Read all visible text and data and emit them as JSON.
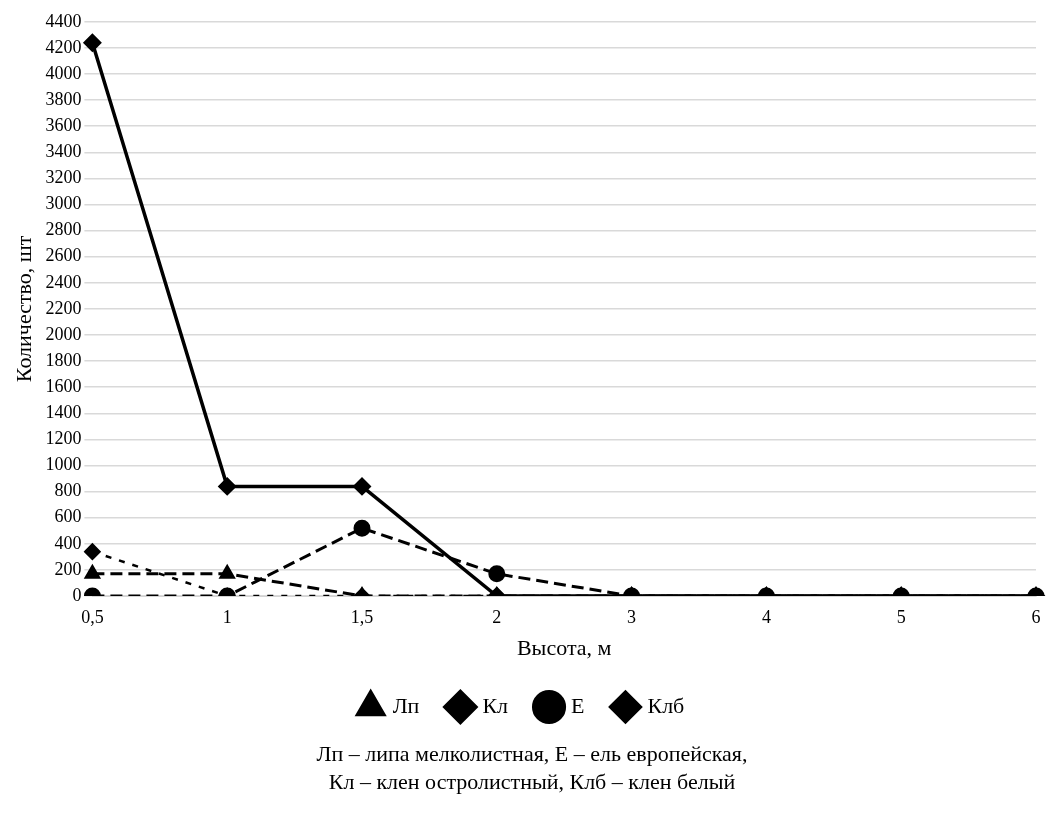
{
  "chart_data": {
    "type": "line",
    "xlabel": "Высота, м",
    "ylabel": "Количество, шт",
    "categories": [
      "0,5",
      "1",
      "1,5",
      "2",
      "3",
      "4",
      "5",
      "6"
    ],
    "series": [
      {
        "name": "Лп",
        "color": "#000000",
        "values": [
          170,
          170,
          0,
          0,
          0,
          0,
          0,
          0
        ],
        "marker": "triangle",
        "line_style": "dashed"
      },
      {
        "name": "Кл",
        "color": "#000000",
        "values": [
          4240,
          840,
          840,
          0,
          0,
          0,
          0,
          0
        ],
        "marker": "diamond",
        "line_style": "solid"
      },
      {
        "name": "Е",
        "color": "#000000",
        "values": [
          0,
          0,
          520,
          170,
          0,
          0,
          0,
          0
        ],
        "marker": "circle",
        "line_style": "dashed"
      },
      {
        "name": "Клб",
        "color": "#000000",
        "values": [
          340,
          0,
          0,
          0,
          0,
          0,
          0,
          0
        ],
        "marker": "diamond",
        "line_style": "dotted"
      }
    ],
    "ylim": [
      0,
      4400
    ],
    "yticks": [
      0,
      200,
      400,
      600,
      800,
      1000,
      1200,
      1400,
      1600,
      1800,
      2000,
      2200,
      2400,
      2600,
      2800,
      3000,
      3200,
      3400,
      3600,
      3800,
      4000,
      4200,
      4400
    ],
    "grid": "y",
    "legend": "bottom",
    "annotations": [
      "Лп – липа мелколистная, Е – ель европейская,",
      "Кл – клен остролистный, Клб – клен белый"
    ]
  }
}
